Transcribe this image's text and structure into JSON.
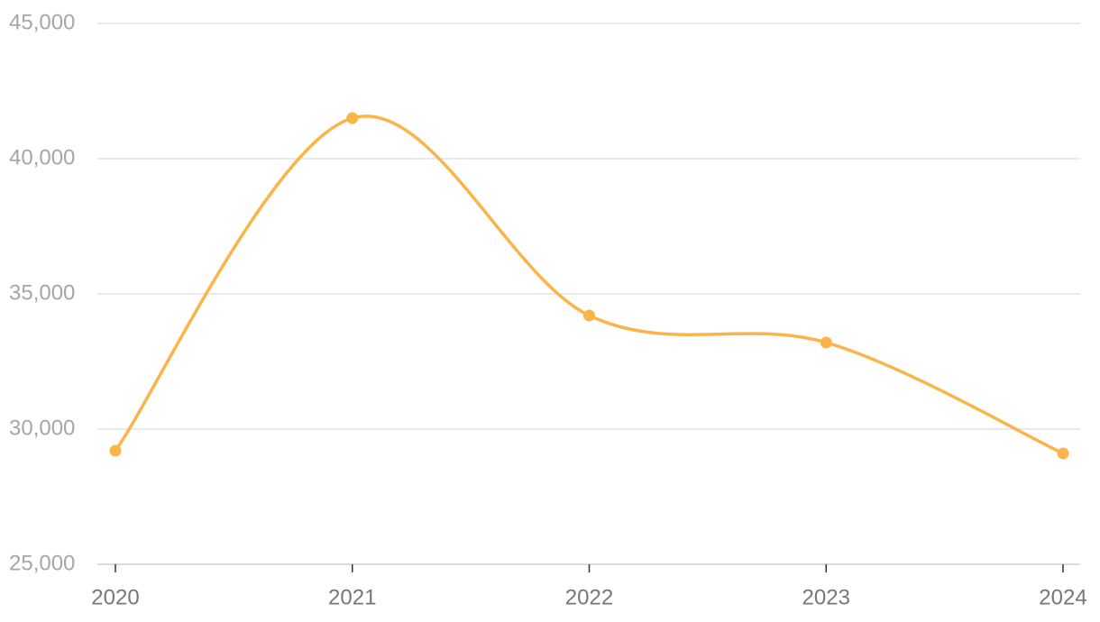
{
  "chart_data": {
    "type": "line",
    "categories": [
      "2020",
      "2021",
      "2022",
      "2023",
      "2024"
    ],
    "values": [
      29200,
      41500,
      34200,
      33200,
      29100
    ],
    "color": "#fbb44a",
    "ylim": [
      25000,
      45000
    ],
    "yticks": [
      {
        "value": 25000,
        "label": "25,000"
      },
      {
        "value": 30000,
        "label": "30,000"
      },
      {
        "value": 35000,
        "label": "35,000"
      },
      {
        "value": 40000,
        "label": "40,000"
      },
      {
        "value": 45000,
        "label": "45,000"
      }
    ],
    "grid": true,
    "smooth": true
  }
}
